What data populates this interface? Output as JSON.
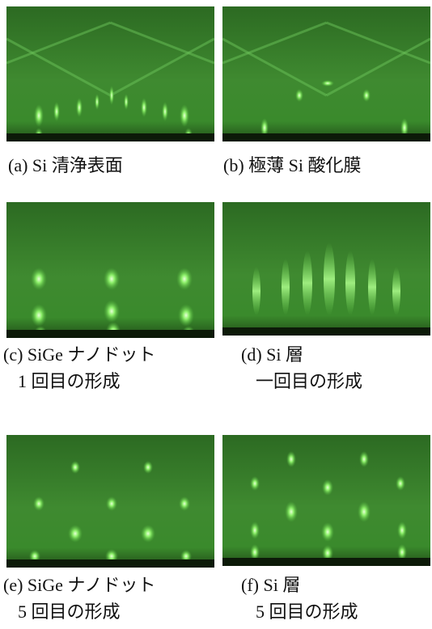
{
  "panels": [
    {
      "caption": [
        "(a) Si 清浄表面"
      ]
    },
    {
      "caption": [
        "(b) 極薄 Si 酸化膜"
      ]
    },
    {
      "caption": [
        "(c) SiGe ナノドット",
        "1 回目の形成"
      ]
    },
    {
      "caption": [
        "(d) Si 層",
        "一回目の形成"
      ]
    },
    {
      "caption": [
        "(e) SiGe ナノドット",
        "5 回目の形成"
      ]
    },
    {
      "caption": [
        "(f) Si 層",
        "5 回目の形成"
      ]
    }
  ]
}
